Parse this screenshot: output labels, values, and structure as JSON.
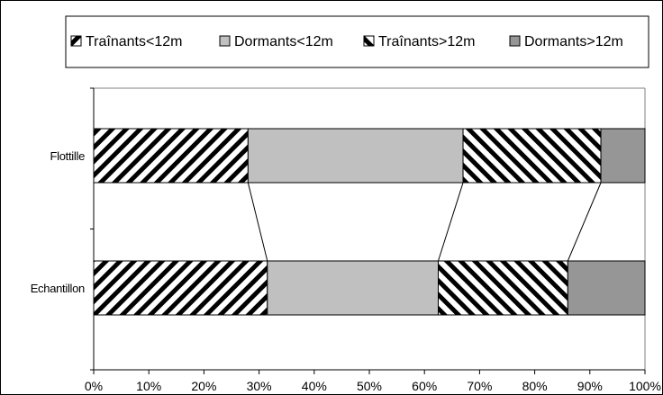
{
  "chart_data": {
    "type": "bar",
    "orientation": "horizontal",
    "stacked": "percent",
    "categories": [
      "Flottille",
      "Echantillon"
    ],
    "series": [
      {
        "name": "Traînants<12m",
        "values": [
          28,
          31.5
        ],
        "pattern": "diag-up"
      },
      {
        "name": "Dormants<12m",
        "values": [
          39,
          31
        ],
        "pattern": "solid-light",
        "color": "#c0c0c0"
      },
      {
        "name": "Traînants>12m",
        "values": [
          25,
          23.5
        ],
        "pattern": "diag-down"
      },
      {
        "name": "Dormants>12m",
        "values": [
          8,
          14
        ],
        "pattern": "solid-dark",
        "color": "#969696"
      }
    ],
    "x_ticks": [
      "0%",
      "10%",
      "20%",
      "30%",
      "40%",
      "50%",
      "60%",
      "70%",
      "80%",
      "90%",
      "100%"
    ],
    "xlim": [
      0,
      100
    ],
    "series_lines": true,
    "legend_position": "top",
    "grid": false
  }
}
